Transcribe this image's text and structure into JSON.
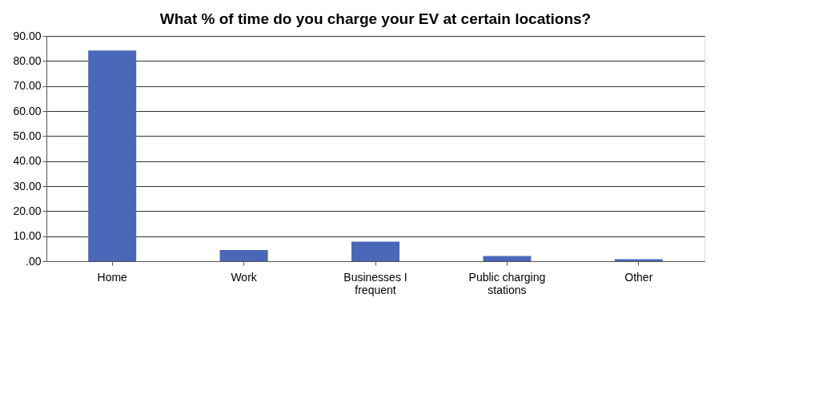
{
  "chart_data": {
    "type": "bar",
    "title": "What % of time do you charge your EV at certain locations?",
    "categories": [
      "Home",
      "Work",
      "Businesses I frequent",
      "Public charging stations",
      "Other"
    ],
    "values": [
      84.2,
      4.5,
      7.8,
      2.1,
      0.8
    ],
    "color": "#4a68b8",
    "ylim": [
      0,
      90
    ],
    "yticks": [
      {
        "value": 0,
        "label": ".00"
      },
      {
        "value": 10,
        "label": "10.00"
      },
      {
        "value": 20,
        "label": "20.00"
      },
      {
        "value": 30,
        "label": "30.00"
      },
      {
        "value": 40,
        "label": "40.00"
      },
      {
        "value": 50,
        "label": "50.00"
      },
      {
        "value": 60,
        "label": "60.00"
      },
      {
        "value": 70,
        "label": "70.00"
      },
      {
        "value": 80,
        "label": "80.00"
      },
      {
        "value": 90,
        "label": "90.00"
      }
    ],
    "grid": "y"
  }
}
